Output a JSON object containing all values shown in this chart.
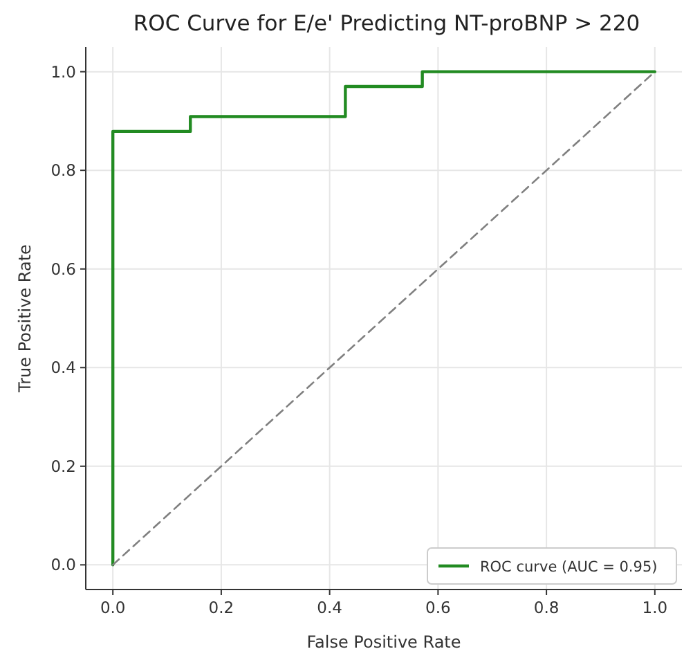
{
  "chart_data": {
    "type": "line",
    "title": "ROC Curve for E/e' Predicting NT-proBNP > 220",
    "xlabel": "False Positive Rate",
    "ylabel": "True Positive Rate",
    "xlim": [
      -0.05,
      1.05
    ],
    "ylim": [
      -0.05,
      1.05
    ],
    "xticks": [
      {
        "value": 0,
        "label": "0.0"
      },
      {
        "value": 0.2,
        "label": "0.2"
      },
      {
        "value": 0.4,
        "label": "0.4"
      },
      {
        "value": 0.6,
        "label": "0.6"
      },
      {
        "value": 0.8,
        "label": "0.8"
      },
      {
        "value": 1,
        "label": "1.0"
      }
    ],
    "yticks": [
      {
        "value": 0,
        "label": "0.0"
      },
      {
        "value": 0.2,
        "label": "0.2"
      },
      {
        "value": 0.4,
        "label": "0.4"
      },
      {
        "value": 0.6,
        "label": "0.6"
      },
      {
        "value": 0.8,
        "label": "0.8"
      },
      {
        "value": 1,
        "label": "1.0"
      }
    ],
    "grid": true,
    "legend": "bottom right",
    "marker": "none",
    "series": [
      {
        "name": "ROC curve (AUC = 0.95)",
        "color": "#228b22",
        "line_style": "solid",
        "x": [
          0,
          0,
          0.143,
          0.143,
          0.429,
          0.429,
          0.571,
          0.571,
          1
        ],
        "values": [
          0,
          0.879,
          0.879,
          0.909,
          0.909,
          0.97,
          0.97,
          1,
          1
        ]
      },
      {
        "color": "#808080",
        "line_style": "dashed",
        "x": [
          0,
          1
        ],
        "values": [
          0,
          1
        ]
      }
    ]
  }
}
